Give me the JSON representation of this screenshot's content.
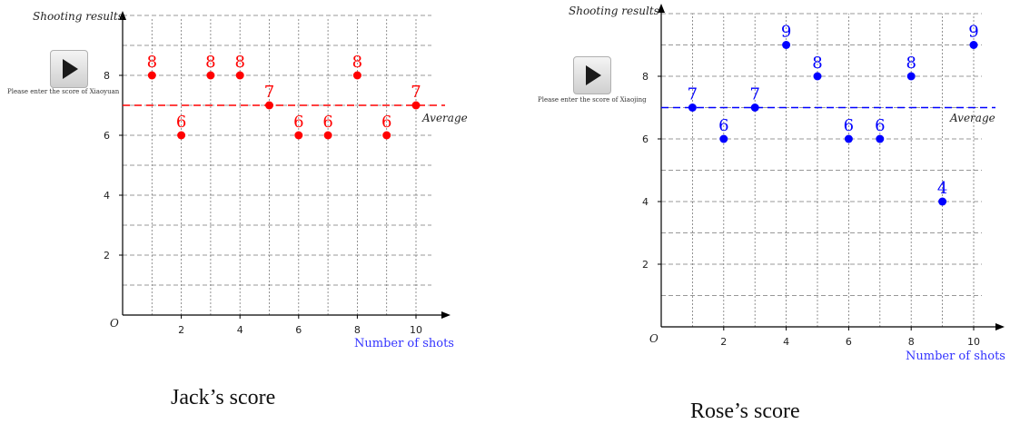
{
  "charts": [
    {
      "y_axis_title": "Shooting results",
      "x_axis_title": "Number of shots",
      "origin_label": "O",
      "average_label": "Average",
      "play_caption": "Please enter the score of Xiaoyuan",
      "caption": "Jack’s score",
      "color": "#ff0000",
      "x_axis_color": "#3333ff"
    },
    {
      "y_axis_title": "Shooting results",
      "x_axis_title": "Number of shots",
      "origin_label": "O",
      "average_label": "Average",
      "play_caption": "Please enter the score of Xiaojing",
      "caption": "Rose’s score",
      "color": "#0000ff",
      "x_axis_color": "#3333ff"
    }
  ],
  "chart_data": [
    {
      "type": "scatter",
      "title": "Jack’s score",
      "xlabel": "Number of shots",
      "ylabel": "Shooting results",
      "x": [
        1,
        2,
        3,
        4,
        5,
        6,
        7,
        8,
        9,
        10
      ],
      "y": [
        8,
        6,
        8,
        8,
        7,
        6,
        6,
        8,
        6,
        7
      ],
      "average": 7,
      "xticks": [
        2,
        4,
        6,
        8,
        10
      ],
      "yticks": [
        2,
        4,
        6,
        8
      ],
      "xlim": [
        0,
        10.5
      ],
      "ylim": [
        0,
        10
      ],
      "grid": true,
      "point_labels": true
    },
    {
      "type": "scatter",
      "title": "Rose’s score",
      "xlabel": "Number of shots",
      "ylabel": "Shooting results",
      "x": [
        1,
        2,
        3,
        4,
        5,
        6,
        7,
        8,
        9,
        10
      ],
      "y": [
        7,
        6,
        7,
        9,
        8,
        6,
        6,
        8,
        4,
        9
      ],
      "average": 7,
      "xticks": [
        2,
        4,
        6,
        8,
        10
      ],
      "yticks": [
        2,
        4,
        6,
        8
      ],
      "xlim": [
        0,
        10.5
      ],
      "ylim": [
        0,
        10
      ],
      "grid": true,
      "point_labels": true
    }
  ]
}
